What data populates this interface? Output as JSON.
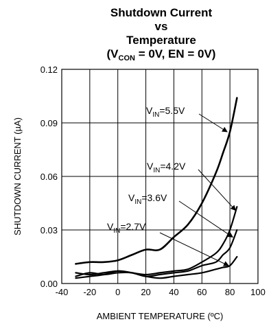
{
  "chart_data": {
    "type": "line",
    "title": "Shutdown Current",
    "title_line2": "vs",
    "title_line3": "Temperature",
    "title_cond_open": "(V",
    "title_cond_sub": "CON",
    "title_cond_rest": " = 0V, EN = 0V)",
    "xlabel": "AMBIENT TEMPERATURE (ºC)",
    "ylabel": "SHUTDOWN CURRENT (µA)",
    "xlim": [
      -40,
      100
    ],
    "ylim": [
      0,
      0.12
    ],
    "xticks": [
      "-40",
      "-20",
      "0",
      "20",
      "40",
      "60",
      "80",
      "100"
    ],
    "yticks": [
      "0.00",
      "0.03",
      "0.06",
      "0.09",
      "0.12"
    ],
    "grid": true,
    "series": [
      {
        "name_main": "V",
        "name_sub": "IN",
        "name_rest": "=5.5V",
        "x": [
          -30,
          -20,
          -10,
          0,
          10,
          20,
          30,
          40,
          50,
          60,
          70,
          75,
          80,
          85
        ],
        "y": [
          0.011,
          0.012,
          0.012,
          0.013,
          0.016,
          0.019,
          0.019,
          0.026,
          0.033,
          0.045,
          0.062,
          0.073,
          0.085,
          0.104
        ]
      },
      {
        "name_main": "V",
        "name_sub": "IN",
        "name_rest": "=4.2V",
        "x": [
          -30,
          -20,
          -10,
          0,
          10,
          20,
          30,
          40,
          50,
          60,
          70,
          75,
          80,
          85
        ],
        "y": [
          0.006,
          0.005,
          0.006,
          0.007,
          0.006,
          0.005,
          0.006,
          0.007,
          0.008,
          0.012,
          0.017,
          0.022,
          0.03,
          0.043
        ]
      },
      {
        "name_main": "V",
        "name_sub": "IN",
        "name_rest": "=3.6V",
        "x": [
          -30,
          -20,
          -10,
          0,
          10,
          20,
          30,
          40,
          50,
          60,
          70,
          75,
          80,
          85
        ],
        "y": [
          0.004,
          0.006,
          0.005,
          0.006,
          0.006,
          0.004,
          0.005,
          0.006,
          0.007,
          0.01,
          0.012,
          0.016,
          0.02,
          0.03
        ]
      },
      {
        "name_main": "V",
        "name_sub": "IN",
        "name_rest": "=2.7V",
        "x": [
          -30,
          -20,
          -10,
          0,
          10,
          20,
          30,
          40,
          50,
          60,
          70,
          75,
          80,
          85
        ],
        "y": [
          0.003,
          0.004,
          0.005,
          0.007,
          0.006,
          0.004,
          0.003,
          0.004,
          0.005,
          0.006,
          0.008,
          0.009,
          0.01,
          0.015
        ]
      }
    ]
  }
}
